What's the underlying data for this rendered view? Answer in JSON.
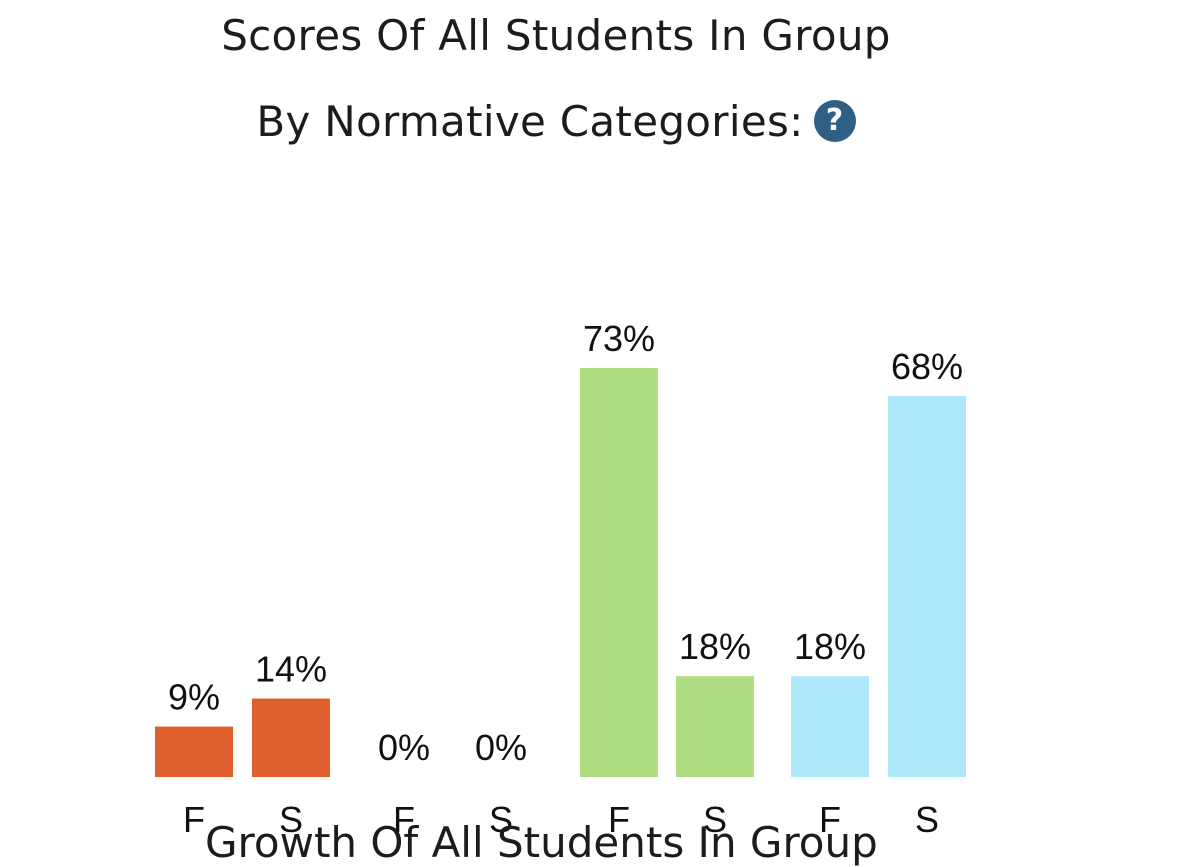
{
  "header": {
    "title_line1": "Scores Of All Students In Group",
    "title_line2": "By Normative Categories:",
    "help_icon": "question-circle-icon",
    "help_icon_glyph": "?"
  },
  "chart_data": {
    "type": "bar",
    "categories": [
      "F",
      "S",
      "F",
      "S",
      "F",
      "S",
      "F",
      "S"
    ],
    "values": [
      9,
      14,
      0,
      0,
      73,
      18,
      18,
      68
    ],
    "data_labels": [
      "9%",
      "14%",
      "0%",
      "0%",
      "73%",
      "18%",
      "18%",
      "68%"
    ],
    "colors": [
      "#e0602c",
      "#e0602c",
      "#e0602c",
      "#e0602c",
      "#b1dd82",
      "#b1dd82",
      "#ade8fb",
      "#ade8fb"
    ],
    "ylim": [
      0,
      73
    ],
    "grid": false,
    "legend": "none"
  },
  "footer": {
    "next_title_partial": "Growth Of All Students In Group"
  }
}
